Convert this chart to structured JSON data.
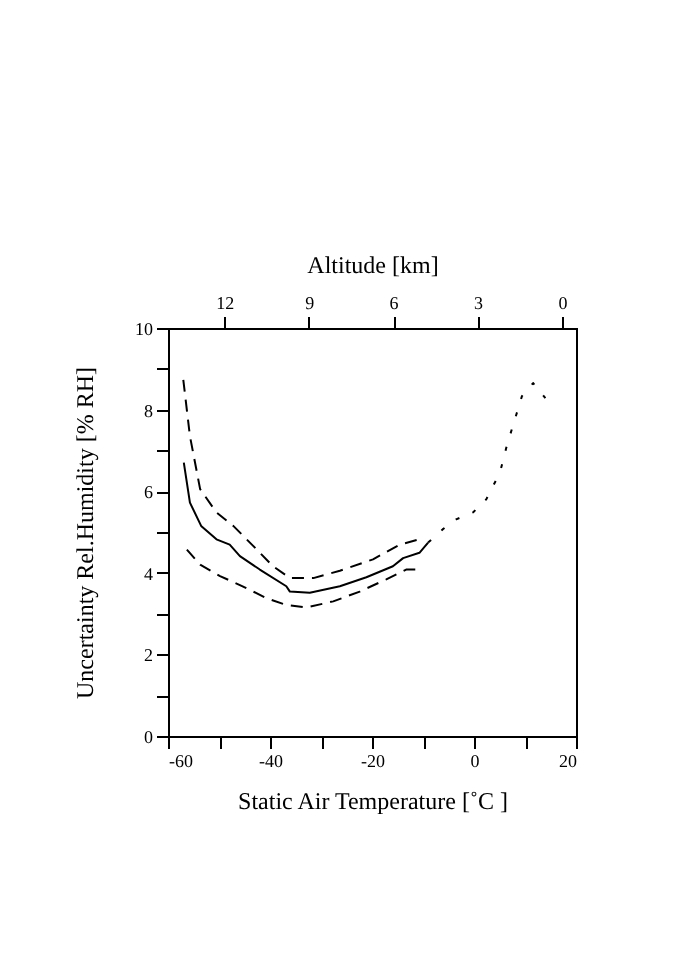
{
  "chart_data": {
    "type": "line",
    "xlabel": "Static Air Temperature  [˚C ]",
    "ylabel": "Uncertainty Rel.Humidity [% RH]",
    "x2label": "Altitude [km]",
    "xlim": [
      -60,
      20
    ],
    "xticks": [
      -60,
      {
        "value": -50,
        "label": null
      },
      -40,
      {
        "value": -30,
        "label": null
      },
      -20,
      {
        "value": -10,
        "label": null
      },
      0,
      {
        "value": 10,
        "label": null
      },
      20
    ],
    "ylim": [
      0,
      10
    ],
    "yticks": [
      0,
      {
        "value": 1,
        "label": null
      },
      2,
      {
        "value": 3,
        "label": null
      },
      4,
      {
        "value": 5,
        "label": null
      },
      6,
      {
        "value": 7,
        "label": null
      },
      8,
      {
        "value": 9,
        "label": null
      },
      10
    ],
    "x2lim": [
      14,
      -0.5
    ],
    "x2ticks": [
      12,
      9,
      6,
      3,
      0
    ],
    "grid": false,
    "series": [
      {
        "color": "#000000",
        "line_style": "solid",
        "x": [
          -56.9,
          -55.7,
          -53.5,
          -50.5,
          -47.9,
          -45.9,
          -42,
          -36.8,
          -36.1,
          -32.2,
          -26.3,
          -21.1,
          -15.9,
          -13.9,
          -10.7,
          -9
        ],
        "values": [
          6.7,
          5.72,
          5.15,
          4.82,
          4.69,
          4.41,
          4.08,
          3.67,
          3.54,
          3.51,
          3.67,
          3.89,
          4.16,
          4.36,
          4.49,
          4.74
        ]
      },
      {
        "color": "#000000",
        "line_style": "dashed",
        "x": [
          -57,
          -55.7,
          -53.7,
          -50.5,
          -47.2,
          -43.3,
          -39.4,
          -36.1,
          -31.5,
          -26.3,
          -19.8,
          -14.6,
          -10.7
        ],
        "values": [
          8.73,
          7.35,
          6.05,
          5.48,
          5.15,
          4.66,
          4.16,
          3.87,
          3.87,
          4.05,
          4.33,
          4.69,
          4.82
        ]
      },
      {
        "color": "#000000",
        "line_style": "dashed",
        "x": [
          -56.3,
          -53.7,
          -49.8,
          -45.9,
          -40.7,
          -36.8,
          -32.8,
          -27.6,
          -22.4,
          -17.2,
          -13.3,
          -10.7
        ],
        "values": [
          4.57,
          4.2,
          3.92,
          3.7,
          3.38,
          3.21,
          3.15,
          3.3,
          3.54,
          3.84,
          4.08,
          4.08
        ]
      },
      {
        "color": "#000000",
        "line_style": "dotted",
        "x": [
          -9,
          -6.1,
          -3.5,
          -0.2,
          2.4,
          5.1,
          6.4,
          8.4,
          9.4,
          11.6,
          14
        ],
        "values": [
          4.74,
          5.07,
          5.31,
          5.48,
          5.8,
          6.46,
          7.1,
          7.92,
          8.33,
          8.65,
          8.28
        ]
      }
    ]
  }
}
